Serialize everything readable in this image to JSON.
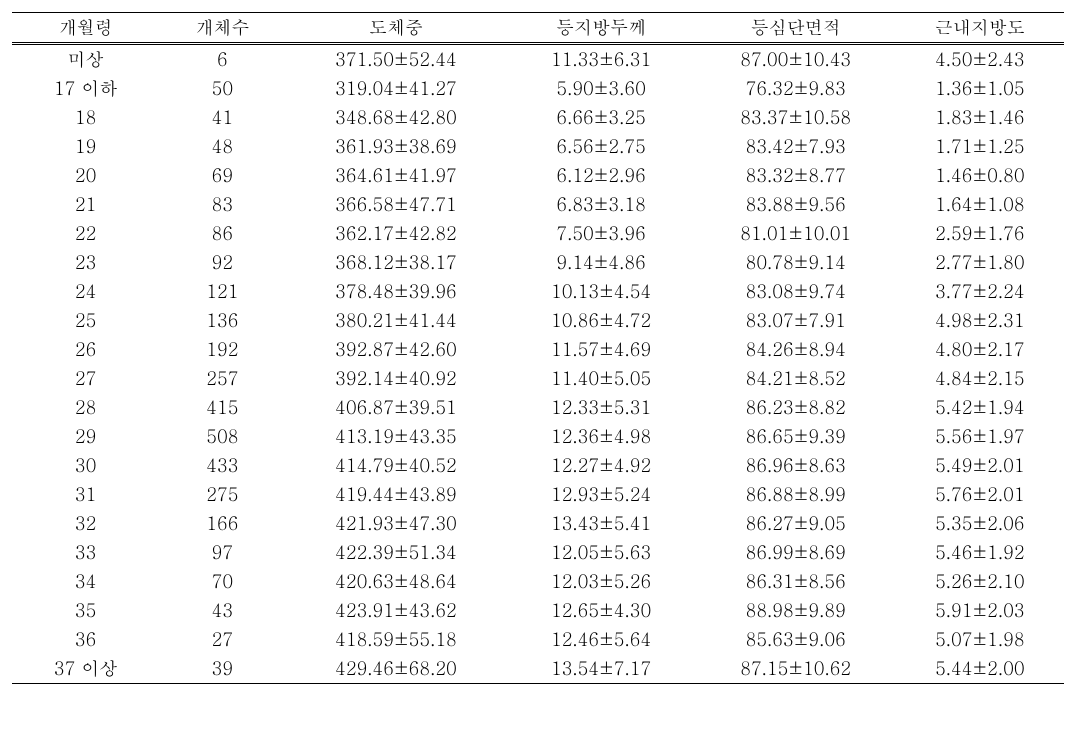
{
  "table": {
    "columns": [
      "개월령",
      "개체수",
      "도체중",
      "등지방두께",
      "등심단면적",
      "근내지방도"
    ],
    "col_widths_pct": [
      14,
      12,
      21,
      18,
      19,
      16
    ],
    "font_family": "Batang, BatangChe, Times New Roman, serif",
    "font_size_pt": 13,
    "border_color": "#000000",
    "background_color": "#ffffff",
    "header_border": {
      "top": "1.5px solid",
      "bottom": "3px double"
    },
    "body_bottom_border": "1.5px solid",
    "rows": [
      [
        "미상",
        "6",
        "371.50±52.44",
        "11.33±6.31",
        "87.00±10.43",
        "4.50±2.43"
      ],
      [
        "17 이하",
        "50",
        "319.04±41.27",
        "5.90±3.60",
        "76.32±9.83",
        "1.36±1.05"
      ],
      [
        "18",
        "41",
        "348.68±42.80",
        "6.66±3.25",
        "83.37±10.58",
        "1.83±1.46"
      ],
      [
        "19",
        "48",
        "361.93±38.69",
        "6.56±2.75",
        "83.42±7.93",
        "1.71±1.25"
      ],
      [
        "20",
        "69",
        "364.61±41.97",
        "6.12±2.96",
        "83.32±8.77",
        "1.46±0.80"
      ],
      [
        "21",
        "83",
        "366.58±47.71",
        "6.83±3.18",
        "83.88±9.56",
        "1.64±1.08"
      ],
      [
        "22",
        "86",
        "362.17±42.82",
        "7.50±3.96",
        "81.01±10.01",
        "2.59±1.76"
      ],
      [
        "23",
        "92",
        "368.12±38.17",
        "9.14±4.86",
        "80.78±9.14",
        "2.77±1.80"
      ],
      [
        "24",
        "121",
        "378.48±39.96",
        "10.13±4.54",
        "83.08±9.74",
        "3.77±2.24"
      ],
      [
        "25",
        "136",
        "380.21±41.44",
        "10.86±4.72",
        "83.07±7.91",
        "4.98±2.31"
      ],
      [
        "26",
        "192",
        "392.87±42.60",
        "11.57±4.69",
        "84.26±8.94",
        "4.80±2.17"
      ],
      [
        "27",
        "257",
        "392.14±40.92",
        "11.40±5.05",
        "84.21±8.52",
        "4.84±2.15"
      ],
      [
        "28",
        "415",
        "406.87±39.51",
        "12.33±5.31",
        "86.23±8.82",
        "5.42±1.94"
      ],
      [
        "29",
        "508",
        "413.19±43.35",
        "12.36±4.98",
        "86.65±9.39",
        "5.56±1.97"
      ],
      [
        "30",
        "433",
        "414.79±40.52",
        "12.27±4.92",
        "86.96±8.63",
        "5.49±2.01"
      ],
      [
        "31",
        "275",
        "419.44±43.89",
        "12.93±5.24",
        "86.88±8.99",
        "5.76±2.01"
      ],
      [
        "32",
        "166",
        "421.93±47.30",
        "13.43±5.41",
        "86.27±9.05",
        "5.35±2.06"
      ],
      [
        "33",
        "97",
        "422.39±51.34",
        "12.05±5.63",
        "86.99±8.69",
        "5.46±1.92"
      ],
      [
        "34",
        "70",
        "420.63±48.64",
        "12.03±5.26",
        "86.31±8.56",
        "5.26±2.10"
      ],
      [
        "35",
        "43",
        "423.91±43.62",
        "12.65±4.30",
        "88.98±9.89",
        "5.91±2.03"
      ],
      [
        "36",
        "27",
        "418.59±55.18",
        "12.46±5.64",
        "85.63±9.06",
        "5.07±1.98"
      ],
      [
        "37 이상",
        "39",
        "429.46±68.20",
        "13.54±7.17",
        "87.15±10.62",
        "5.44±2.00"
      ]
    ]
  }
}
